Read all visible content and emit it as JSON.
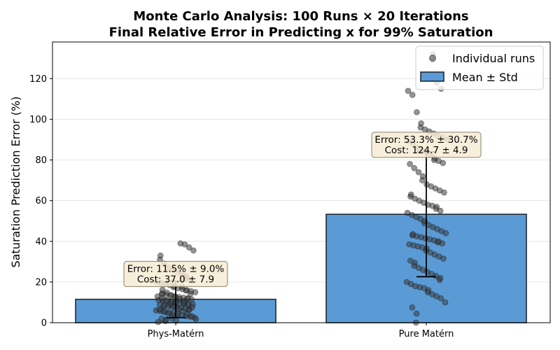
{
  "chart_data": {
    "type": "bar",
    "title_line1": "Monte Carlo Analysis: 100 Runs × 20 Iterations",
    "title_line2": "Final Relative Error in Predicting x for 99% Saturation",
    "xlabel": "",
    "ylabel": "Saturation Prediction Error (%)",
    "ylim": [
      0,
      138
    ],
    "yticks": [
      0,
      20,
      40,
      60,
      80,
      100,
      120
    ],
    "categories": [
      "Phys-Matérn",
      "Pure Matérn"
    ],
    "series": [
      {
        "name": "Mean ± Std",
        "values": [
          11.5,
          53.3
        ],
        "std": [
          9.0,
          30.7
        ]
      }
    ],
    "annotations": [
      {
        "error_text": "Error: 11.5% ± 9.0%",
        "cost_text": "Cost: 37.0 ± 7.9"
      },
      {
        "error_text": "Error: 53.3% ± 30.7%",
        "cost_text": "Cost: 124.7 ± 4.9"
      }
    ],
    "legend": {
      "position": "top-right",
      "entries": [
        "Individual runs",
        "Mean ± Std"
      ]
    },
    "grid": "y",
    "colors": {
      "bar": "#5b9bd5",
      "bar_edge": "#1f2a33",
      "point": "#3a3a3a",
      "annot_bg": "#f7ecd5",
      "annot_edge": "#8a8070",
      "grid": "#e6e6e6"
    },
    "individual_runs": [
      [
        0.8,
        1.5,
        2.0,
        2.5,
        3.0,
        3.3,
        3.7,
        4.0,
        4.4,
        4.8,
        5.0,
        5.3,
        5.7,
        6.0,
        6.3,
        6.6,
        7.0,
        7.2,
        7.5,
        7.8,
        8.0,
        8.2,
        8.5,
        8.8,
        9.0,
        9.2,
        9.5,
        9.8,
        10.0,
        10.2,
        10.5,
        10.8,
        11.0,
        11.2,
        11.5,
        11.8,
        12.0,
        12.3,
        12.6,
        13.0,
        13.3,
        13.7,
        14.0,
        14.5,
        15.0,
        15.5,
        16.0,
        16.5,
        17.0,
        17.5,
        18.0,
        18.5,
        19.0,
        19.5,
        20.0,
        21.0,
        22.0,
        23.0,
        24.0,
        25.0,
        26.0,
        27.0,
        29.0,
        31.0,
        33.0,
        35.5,
        37.0,
        38.5,
        39.0,
        1.0,
        2.2,
        3.5,
        4.6,
        5.5,
        6.5,
        7.6,
        8.6,
        9.6,
        10.6,
        11.6,
        12.6,
        13.6,
        14.8,
        16.2,
        0.3,
        1.8,
        3.2,
        4.2,
        5.8,
        6.8,
        7.9,
        8.9,
        9.9,
        10.9,
        11.9,
        12.9,
        14.2,
        15.8,
        17.8,
        22.5
      ],
      [
        0.0,
        4.5,
        7.5,
        10.0,
        12.0,
        13.0,
        14.0,
        15.0,
        16.0,
        17.0,
        17.5,
        18.0,
        19.0,
        20.0,
        21.0,
        22.0,
        23.0,
        24.0,
        25.0,
        26.0,
        27.0,
        28.0,
        29.5,
        30.5,
        31.5,
        32.5,
        33.5,
        34.5,
        35.5,
        36.5,
        37.0,
        37.5,
        38.0,
        38.5,
        39.0,
        39.5,
        40.0,
        40.5,
        41.0,
        41.5,
        42.0,
        42.5,
        43.0,
        43.5,
        44.0,
        45.0,
        46.0,
        47.0,
        48.0,
        49.0,
        50.0,
        51.0,
        52.0,
        53.0,
        54.0,
        55.0,
        56.0,
        57.0,
        57.5,
        58.0,
        59.0,
        60.0,
        61.0,
        62.0,
        63.0,
        64.0,
        65.0,
        66.0,
        67.0,
        68.0,
        70.0,
        72.0,
        74.0,
        76.0,
        78.0,
        78.5,
        79.5,
        80.0,
        81.0,
        82.5,
        84.0,
        85.0,
        86.0,
        88.0,
        89.0,
        90.0,
        91.0,
        92.0,
        93.0,
        94.0,
        95.0,
        96.0,
        98.0,
        103.5,
        112.0,
        114.0,
        115.0,
        118.0,
        129.0,
        132.0
      ]
    ]
  }
}
